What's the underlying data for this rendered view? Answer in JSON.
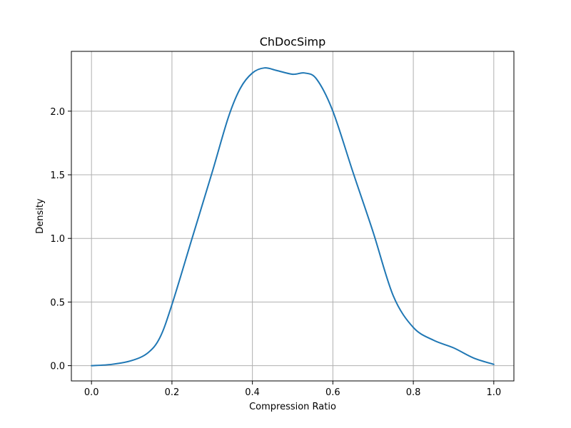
{
  "chart_data": {
    "type": "line",
    "title": "ChDocSimp",
    "xlabel": "Compression Ratio",
    "ylabel": "Density",
    "xlim": [
      -0.05,
      1.05
    ],
    "ylim": [
      -0.12,
      2.47
    ],
    "xticks": [
      0.0,
      0.2,
      0.4,
      0.6,
      0.8,
      1.0
    ],
    "xtick_labels": [
      "0.0",
      "0.2",
      "0.4",
      "0.6",
      "0.8",
      "1.0"
    ],
    "yticks": [
      0.0,
      0.5,
      1.0,
      1.5,
      2.0
    ],
    "ytick_labels": [
      "0.0",
      "0.5",
      "1.0",
      "1.5",
      "2.0"
    ],
    "grid": true,
    "color": "#1f77b4",
    "series": [
      {
        "x": [
          0.0,
          0.05,
          0.1,
          0.14,
          0.17,
          0.2,
          0.25,
          0.3,
          0.34,
          0.37,
          0.4,
          0.43,
          0.46,
          0.5,
          0.53,
          0.56,
          0.6,
          0.65,
          0.7,
          0.75,
          0.8,
          0.85,
          0.9,
          0.95,
          1.0
        ],
        "y": [
          0.0,
          0.01,
          0.04,
          0.1,
          0.22,
          0.48,
          1.0,
          1.52,
          1.95,
          2.18,
          2.3,
          2.34,
          2.32,
          2.29,
          2.3,
          2.25,
          2.0,
          1.52,
          1.05,
          0.55,
          0.3,
          0.2,
          0.14,
          0.06,
          0.01
        ]
      }
    ]
  }
}
